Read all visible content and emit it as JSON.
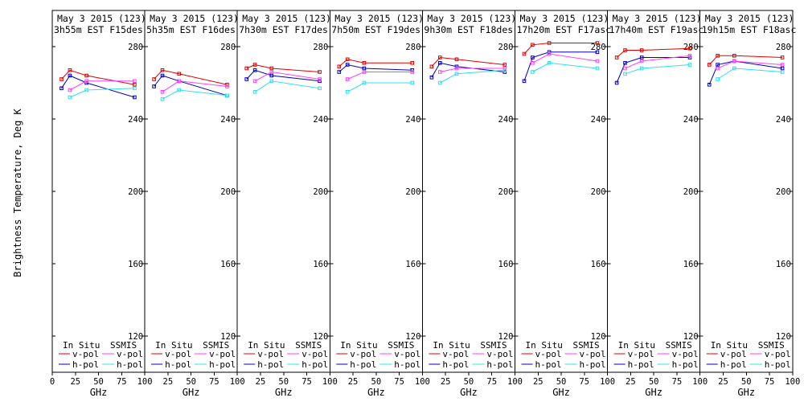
{
  "chart_data": {
    "type": "line",
    "ylabel": "Brightness Temperature, Deg K",
    "xlabel": "GHz",
    "ylim": [
      100,
      300
    ],
    "xlim": [
      0,
      100
    ],
    "x_ticks": [
      0,
      25,
      50,
      75,
      100
    ],
    "y_ticks": [
      120,
      160,
      200,
      240,
      280
    ],
    "grid": false,
    "legend": {
      "in_situ_label": "In Situ",
      "ssmis_label": "SSMIS",
      "v_pol_label": "v-pol",
      "h_pol_label": "h-pol",
      "placement": "bottom"
    },
    "colors": {
      "in_situ_v": "#e00000",
      "in_situ_h": "#0000c0",
      "ssmis_v": "#ff40ff",
      "ssmis_h": "#30e0f0"
    },
    "panels": [
      {
        "title_date": "May 3 2015 (123)",
        "title_pass": "3h55m  EST  F15des",
        "in_situ_v": {
          "x": [
            10,
            19,
            37,
            89
          ],
          "y": [
            262,
            267,
            264,
            259
          ]
        },
        "in_situ_h": {
          "x": [
            10,
            19,
            37,
            89
          ],
          "y": [
            257,
            264,
            260,
            252
          ]
        },
        "ssmis_v": {
          "x": [
            19,
            37,
            89
          ],
          "y": [
            256,
            261,
            261
          ]
        },
        "ssmis_h": {
          "x": [
            19,
            37,
            89
          ],
          "y": [
            252,
            256,
            257
          ]
        }
      },
      {
        "title_date": "May 3 2015 (123)",
        "title_pass": "5h35m  EST  F16des",
        "in_situ_v": {
          "x": [
            10,
            19,
            37,
            89
          ],
          "y": [
            262,
            267,
            265,
            259
          ]
        },
        "in_situ_h": {
          "x": [
            10,
            19,
            37,
            89
          ],
          "y": [
            258,
            264,
            261,
            253
          ]
        },
        "ssmis_v": {
          "x": [
            19,
            37,
            89
          ],
          "y": [
            255,
            261,
            258
          ]
        },
        "ssmis_h": {
          "x": [
            19,
            37,
            89
          ],
          "y": [
            251,
            256,
            253
          ]
        }
      },
      {
        "title_date": "May 3 2015 (123)",
        "title_pass": "7h30m  EST  F17des",
        "in_situ_v": {
          "x": [
            10,
            19,
            37,
            89
          ],
          "y": [
            268,
            270,
            268,
            266
          ]
        },
        "in_situ_h": {
          "x": [
            10,
            19,
            37,
            89
          ],
          "y": [
            262,
            267,
            264,
            261
          ]
        },
        "ssmis_v": {
          "x": [
            19,
            37,
            89
          ],
          "y": [
            261,
            266,
            262
          ]
        },
        "ssmis_h": {
          "x": [
            19,
            37,
            89
          ],
          "y": [
            255,
            261,
            257
          ]
        }
      },
      {
        "title_date": "May 3 2015 (123)",
        "title_pass": "7h50m  EST  F19des",
        "in_situ_v": {
          "x": [
            10,
            19,
            37,
            89
          ],
          "y": [
            269,
            273,
            271,
            271
          ]
        },
        "in_situ_h": {
          "x": [
            10,
            19,
            37,
            89
          ],
          "y": [
            266,
            270,
            268,
            267
          ]
        },
        "ssmis_v": {
          "x": [
            19,
            37,
            89
          ],
          "y": [
            262,
            266,
            266
          ]
        },
        "ssmis_h": {
          "x": [
            19,
            37,
            89
          ],
          "y": [
            255,
            260,
            260
          ]
        }
      },
      {
        "title_date": "May 3 2015 (123)",
        "title_pass": "9h30m  EST  F18des",
        "in_situ_v": {
          "x": [
            10,
            19,
            37,
            89
          ],
          "y": [
            269,
            274,
            273,
            270
          ]
        },
        "in_situ_h": {
          "x": [
            10,
            19,
            37,
            89
          ],
          "y": [
            263,
            271,
            269,
            266
          ]
        },
        "ssmis_v": {
          "x": [
            19,
            37,
            89
          ],
          "y": [
            266,
            268,
            268
          ]
        },
        "ssmis_h": {
          "x": [
            19,
            37,
            89
          ],
          "y": [
            260,
            265,
            267
          ]
        }
      },
      {
        "title_date": "May 3 2015 (123)",
        "title_pass": "17h20m  EST  F17asc",
        "in_situ_v": {
          "x": [
            10,
            19,
            37,
            89
          ],
          "y": [
            276,
            281,
            282,
            282
          ]
        },
        "in_situ_h": {
          "x": [
            10,
            19,
            37,
            89
          ],
          "y": [
            261,
            274,
            277,
            277
          ]
        },
        "ssmis_v": {
          "x": [
            19,
            37,
            89
          ],
          "y": [
            271,
            276,
            272
          ]
        },
        "ssmis_h": {
          "x": [
            19,
            37,
            89
          ],
          "y": [
            266,
            271,
            268
          ]
        }
      },
      {
        "title_date": "May 3 2015 (123)",
        "title_pass": "17h40m  EST  F19asc",
        "in_situ_v": {
          "x": [
            10,
            19,
            37,
            89
          ],
          "y": [
            274,
            278,
            278,
            279
          ]
        },
        "in_situ_h": {
          "x": [
            10,
            19,
            37,
            89
          ],
          "y": [
            260,
            271,
            274,
            274
          ]
        },
        "ssmis_v": {
          "x": [
            19,
            37,
            89
          ],
          "y": [
            268,
            272,
            275
          ]
        },
        "ssmis_h": {
          "x": [
            19,
            37,
            89
          ],
          "y": [
            265,
            268,
            270
          ]
        }
      },
      {
        "title_date": "May 3 2015 (123)",
        "title_pass": "19h15m  EST  F18asc",
        "in_situ_v": {
          "x": [
            10,
            19,
            37,
            89
          ],
          "y": [
            270,
            275,
            275,
            274
          ]
        },
        "in_situ_h": {
          "x": [
            10,
            19,
            37,
            89
          ],
          "y": [
            259,
            270,
            272,
            268
          ]
        },
        "ssmis_v": {
          "x": [
            19,
            37,
            89
          ],
          "y": [
            268,
            272,
            270
          ]
        },
        "ssmis_h": {
          "x": [
            19,
            37,
            89
          ],
          "y": [
            262,
            268,
            266
          ]
        }
      }
    ]
  }
}
